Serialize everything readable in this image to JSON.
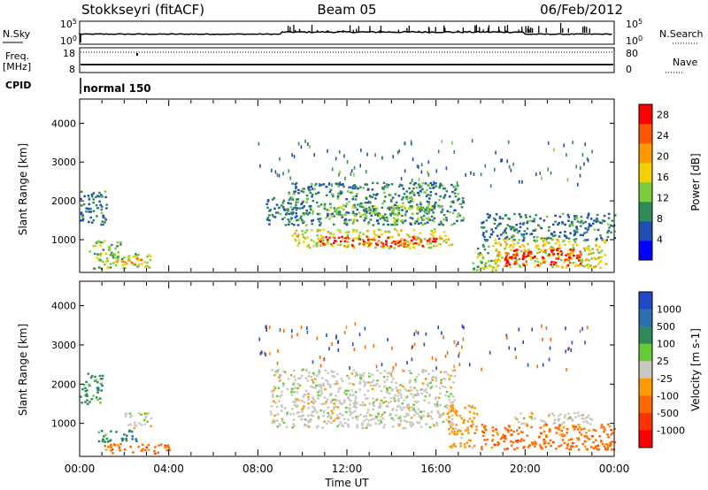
{
  "header": {
    "station": "Stokkseyri (fitACF)",
    "beam": "Beam 05",
    "date": "06/Feb/2012"
  },
  "top_panels": {
    "nsky": {
      "label": "N.Sky",
      "tick_top": "10^5",
      "tick_bottom": "10^0"
    },
    "nsearch": {
      "label": "N.Search",
      "tick_top": "10^5",
      "tick_bottom": "10^0"
    },
    "freq": {
      "label_line1": "Freq.",
      "label_line2": "[MHz]",
      "tick_top": "18",
      "tick_bottom": "8"
    },
    "nave": {
      "label": "Nave",
      "tick_top": "80",
      "tick_bottom": "0"
    },
    "cpid": {
      "label": "CPID",
      "mode": "normal 150"
    }
  },
  "colors": {
    "power": [
      "#0000ff",
      "#1f4fb4",
      "#2e8b57",
      "#7ccd3c",
      "#f5d000",
      "#ff9900",
      "#ff5500",
      "#ff0000"
    ],
    "velocity": [
      "#2048c8",
      "#2a6fb0",
      "#2e8b57",
      "#66cc33",
      "#c8c8c0",
      "#ff9a00",
      "#ff6a00",
      "#ff3300",
      "#ff0000"
    ]
  },
  "chart_data": [
    {
      "type": "heatmap",
      "name": "power",
      "ylabel": "Slant Range [km]",
      "xlim": [
        0,
        24
      ],
      "ylim": [
        180,
        4600
      ],
      "y_ticks": [
        "1000",
        "2000",
        "3000",
        "4000"
      ],
      "x_tick_labels": [
        "00:00",
        "04:00",
        "08:00",
        "12:00",
        "16:00",
        "20:00",
        "00:00"
      ],
      "colorbar": {
        "label": "Power [dB]",
        "ticks": [
          "4",
          "8",
          "12",
          "16",
          "20",
          "24",
          "28"
        ],
        "range": [
          0,
          30
        ]
      },
      "regions": [
        {
          "t0": 0.0,
          "t1": 1.2,
          "r0": 1400,
          "r1": 2300,
          "level": 8
        },
        {
          "t0": 0.4,
          "t1": 1.8,
          "r0": 600,
          "r1": 1000,
          "level": 12
        },
        {
          "t0": 0.6,
          "t1": 3.3,
          "r0": 280,
          "r1": 700,
          "level": 14
        },
        {
          "t0": 1.6,
          "t1": 2.8,
          "r0": 350,
          "r1": 550,
          "level": 20
        },
        {
          "t0": 8.3,
          "t1": 9.8,
          "r0": 1400,
          "r1": 2100,
          "level": 8
        },
        {
          "t0": 9.3,
          "t1": 17.2,
          "r0": 1400,
          "r1": 2500,
          "level": 9
        },
        {
          "t0": 11.0,
          "t1": 15.8,
          "r0": 1500,
          "r1": 1900,
          "level": 13
        },
        {
          "t0": 9.5,
          "t1": 16.7,
          "r0": 800,
          "r1": 1300,
          "level": 16
        },
        {
          "t0": 10.5,
          "t1": 16.0,
          "r0": 850,
          "r1": 1100,
          "level": 27
        },
        {
          "t0": 17.6,
          "t1": 18.7,
          "r0": 200,
          "r1": 900,
          "level": 12
        },
        {
          "t0": 18.0,
          "t1": 24.0,
          "r0": 1000,
          "r1": 1700,
          "level": 8
        },
        {
          "t0": 18.6,
          "t1": 23.6,
          "r0": 300,
          "r1": 1050,
          "level": 16
        },
        {
          "t0": 19.0,
          "t1": 22.5,
          "r0": 350,
          "r1": 800,
          "level": 28
        }
      ]
    },
    {
      "type": "heatmap",
      "name": "velocity",
      "ylabel": "Slant Range [km]",
      "xlabel": "Time UT",
      "xlim": [
        0,
        24
      ],
      "ylim": [
        180,
        4600
      ],
      "y_ticks": [
        "1000",
        "2000",
        "3000",
        "4000"
      ],
      "x_tick_labels": [
        "00:00",
        "04:00",
        "08:00",
        "12:00",
        "16:00",
        "20:00",
        "00:00"
      ],
      "colorbar": {
        "label": "Velocity [m s-1]",
        "ticks": [
          "1000",
          "500",
          "100",
          "25",
          "-25",
          "-100",
          "-500",
          "-1000"
        ]
      },
      "regions": [
        {
          "t0": 0.0,
          "t1": 1.0,
          "r0": 1500,
          "r1": 2300,
          "cls": 2
        },
        {
          "t0": 0.8,
          "t1": 2.6,
          "r0": 550,
          "r1": 850,
          "cls": 2
        },
        {
          "t0": 2.0,
          "t1": 3.2,
          "r0": 900,
          "r1": 1300,
          "cls": 4
        },
        {
          "t0": 1.0,
          "t1": 4.0,
          "r0": 250,
          "r1": 500,
          "cls": 6
        },
        {
          "t0": 8.5,
          "t1": 16.8,
          "r0": 900,
          "r1": 2400,
          "cls": 4
        },
        {
          "t0": 16.5,
          "t1": 17.8,
          "r0": 400,
          "r1": 1500,
          "cls": 5
        },
        {
          "t0": 18.0,
          "t1": 24.0,
          "r0": 350,
          "r1": 1000,
          "cls": 6
        },
        {
          "t0": 19.5,
          "t1": 23.0,
          "r0": 1000,
          "r1": 1300,
          "cls": 4
        }
      ]
    }
  ]
}
